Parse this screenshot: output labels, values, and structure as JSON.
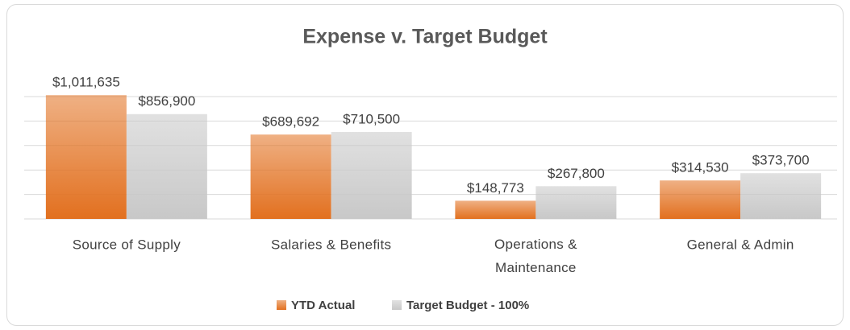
{
  "chart_data": {
    "type": "bar",
    "title": "Expense v. Target Budget",
    "categories": [
      "Source of Supply",
      "Salaries & Benefits",
      "Operations & Maintenance",
      "General & Admin"
    ],
    "series": [
      {
        "name": "YTD Actual",
        "color": "#e2701f",
        "values": [
          1011635,
          689692,
          148773,
          314530
        ],
        "value_labels": [
          "$1,011,635",
          "$689,692",
          "$148,773",
          "$314,530"
        ]
      },
      {
        "name": "Target Budget - 100%",
        "color": "#c8c8c8",
        "values": [
          856900,
          710500,
          267800,
          373700
        ],
        "value_labels": [
          "$856,900",
          "$710,500",
          "$267,800",
          "$373,700"
        ]
      }
    ],
    "ylim": [
      0,
      1000000
    ],
    "yticks": [
      0,
      200000,
      400000,
      600000,
      800000,
      1000000
    ],
    "grid": true,
    "legend": "bottom"
  }
}
